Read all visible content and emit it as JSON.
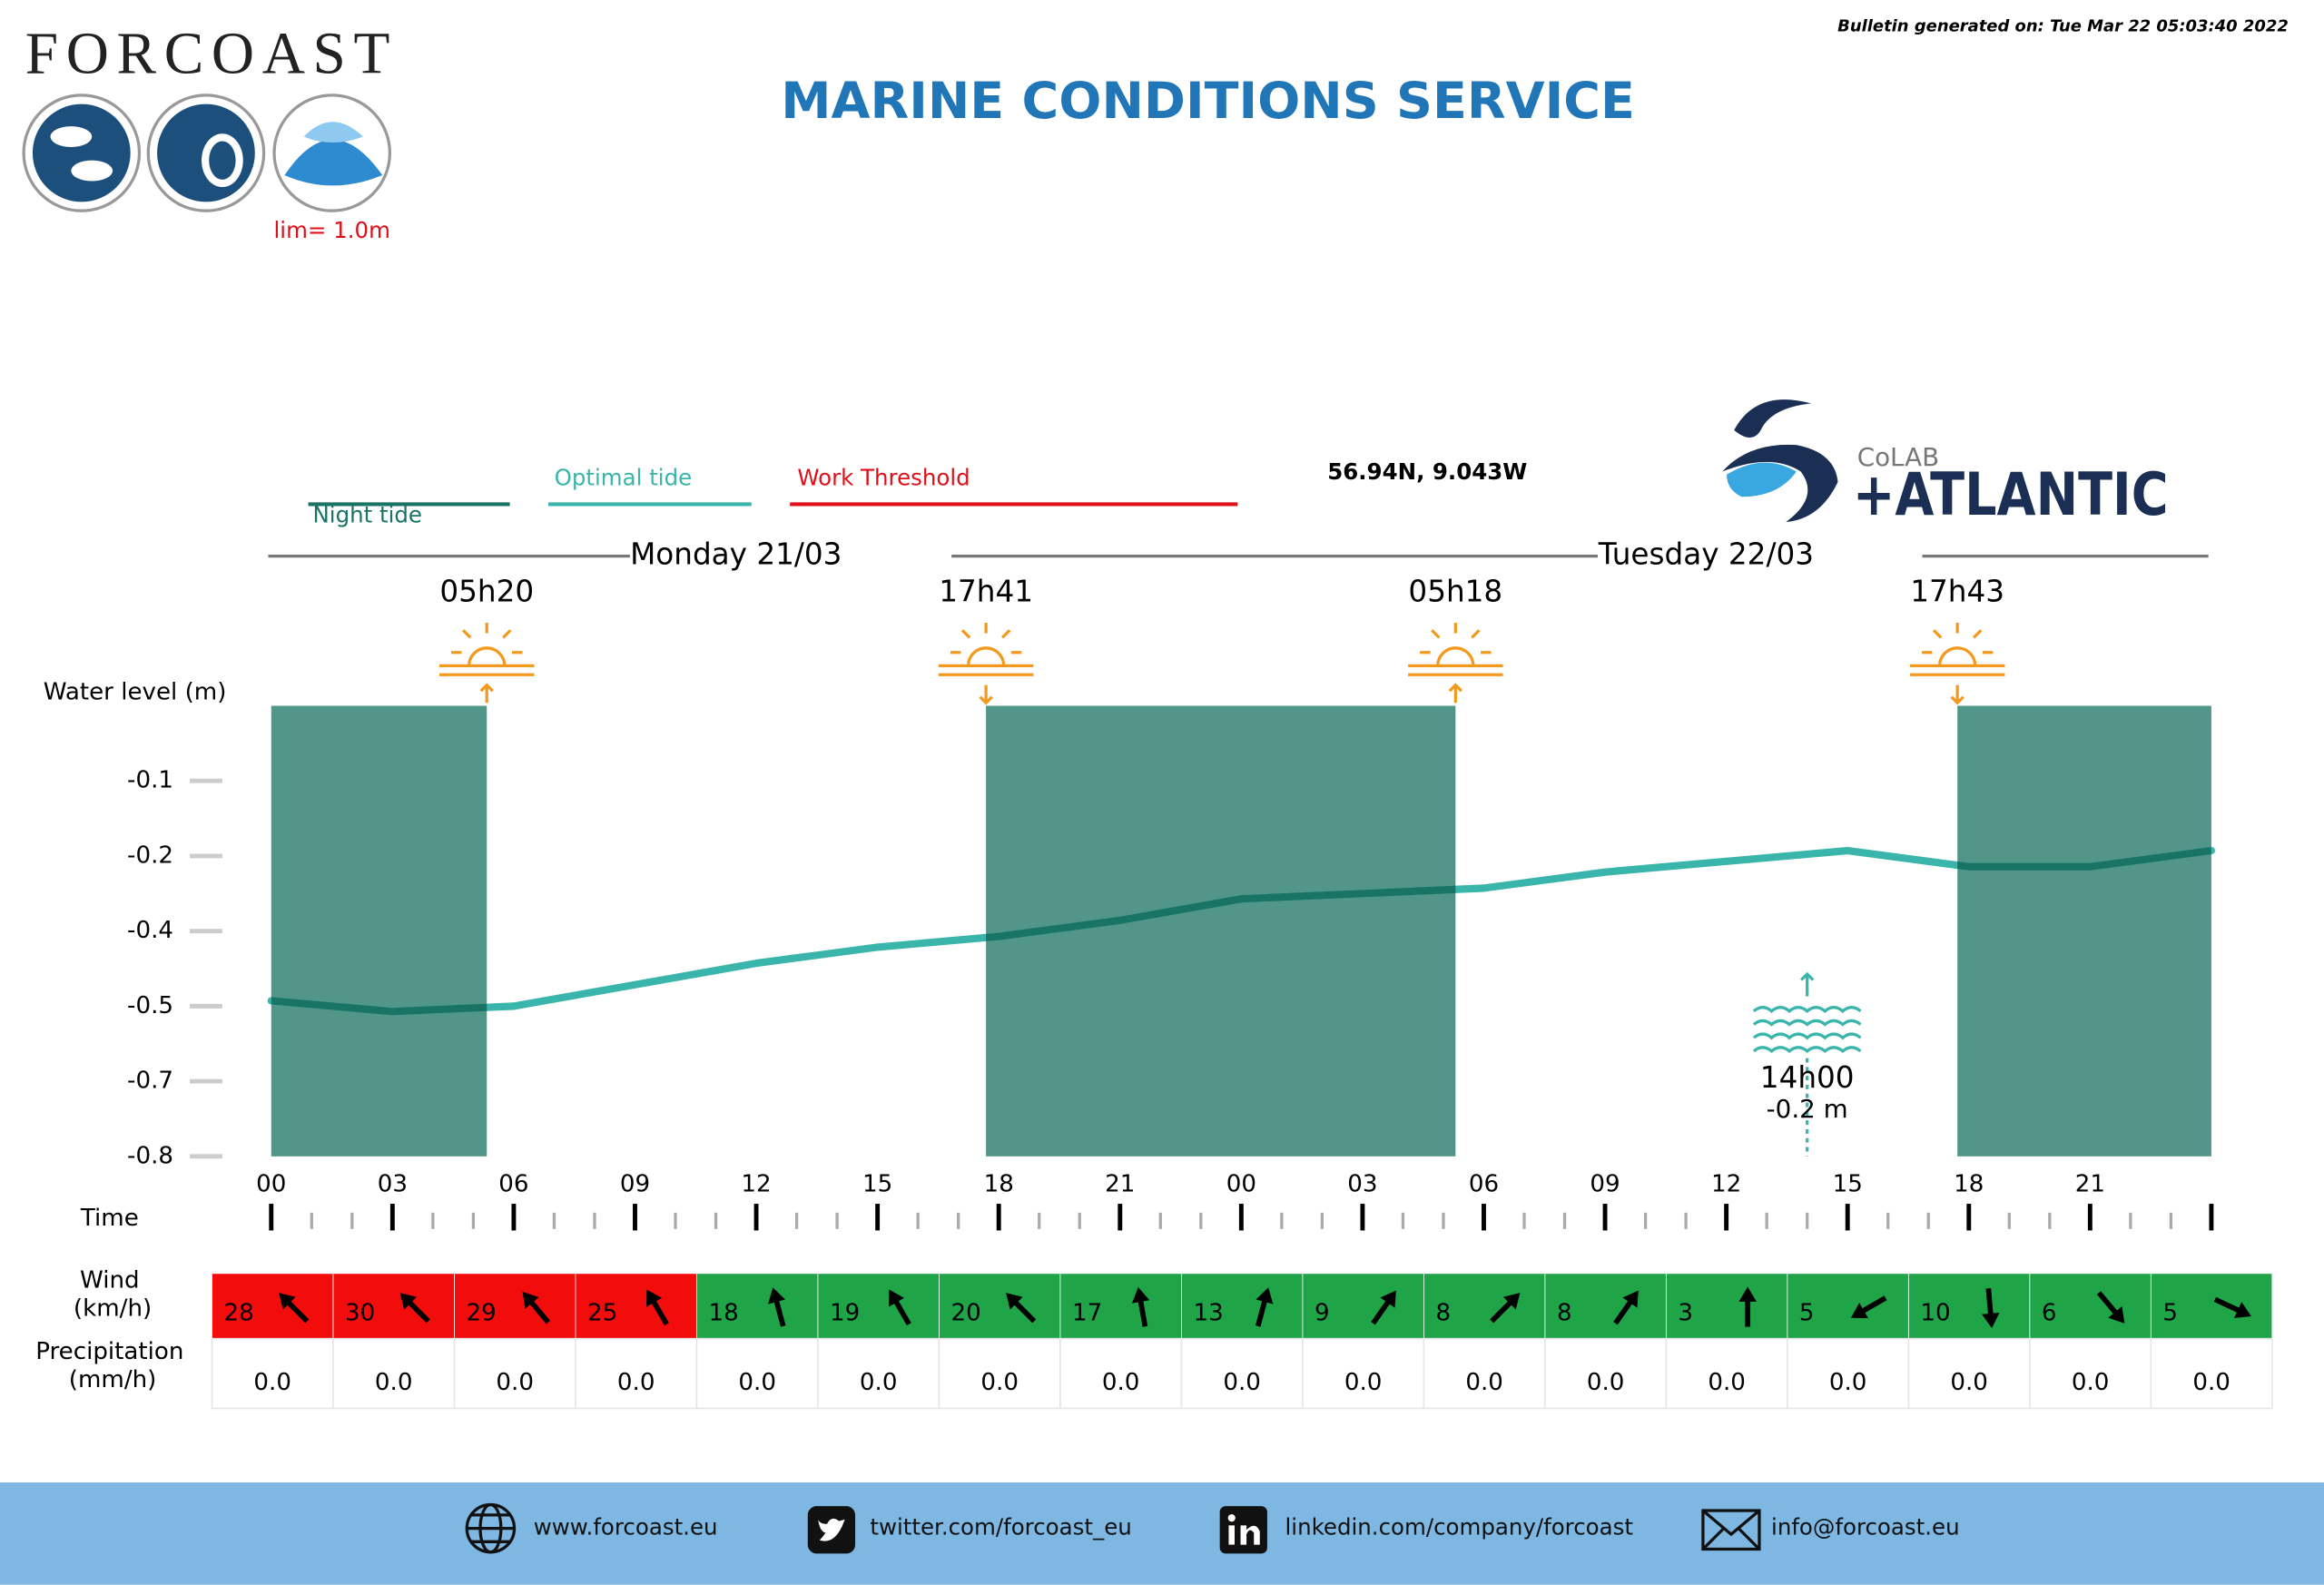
{
  "header": {
    "logo": "FORCOAST",
    "limit": "lim= 1.0m",
    "title": "MARINE CONDITIONS SERVICE",
    "generated": "Bulletin generated on: Tue Mar 22 05:03:40 2022",
    "location": "56.94N, 9.043W",
    "partner_small": "CoLAB",
    "partner_big": "+ATLANTIC"
  },
  "chart_data": {
    "type": "line",
    "legend": [
      {
        "name": "Night tide",
        "color": "#1a7466"
      },
      {
        "name": "Optimal tide",
        "color": "#3ab5ab"
      },
      {
        "name": "Work Threshold",
        "color": "#e0101a"
      }
    ],
    "ylabel": "Water level (m)",
    "xlabel": "Time",
    "x": [
      0,
      3,
      6,
      9,
      12,
      15,
      18,
      21,
      24,
      27,
      30,
      33,
      36,
      39,
      42,
      45,
      48
    ],
    "values": [
      -0.51,
      -0.53,
      -0.52,
      -0.48,
      -0.44,
      -0.41,
      -0.39,
      -0.36,
      -0.32,
      -0.31,
      -0.3,
      -0.27,
      -0.25,
      -0.23,
      -0.26,
      -0.26,
      -0.23
    ],
    "color": "#3ab5ab",
    "night_line_color": "#1a7466",
    "night_color": "#52968a",
    "sun_color": "#f39a1e",
    "xlim": [
      0,
      48
    ],
    "ylim": [
      -0.8,
      0.04
    ],
    "yticks": [
      {
        "value": -0.8,
        "label": "-0.8"
      },
      {
        "value": -0.66,
        "label": "-0.7"
      },
      {
        "value": -0.52,
        "label": "-0.5"
      },
      {
        "value": -0.38,
        "label": "-0.4"
      },
      {
        "value": -0.24,
        "label": "-0.2"
      },
      {
        "value": -0.1,
        "label": "-0.1"
      }
    ],
    "xticks": [
      {
        "value": 0,
        "label": "00"
      },
      {
        "value": 3,
        "label": "03"
      },
      {
        "value": 6,
        "label": "06"
      },
      {
        "value": 9,
        "label": "09"
      },
      12,
      15,
      18,
      21,
      {
        "value": 24,
        "label": "00"
      },
      {
        "value": 27,
        "label": "03"
      },
      {
        "value": 30,
        "label": "06"
      },
      {
        "value": 33,
        "label": "09"
      },
      {
        "value": 36,
        "label": "12"
      },
      {
        "value": 39,
        "label": "15"
      },
      {
        "value": 42,
        "label": "18"
      },
      {
        "value": 45,
        "label": "21"
      }
    ],
    "days": [
      {
        "label": "Monday 21/03",
        "sunrise": "05h20",
        "sunset": "17h41"
      },
      {
        "label": "Tuesday 22/03",
        "sunrise": "05h18",
        "sunset": "17h43"
      }
    ],
    "high_tide": {
      "time": "14h00",
      "x": 38,
      "value": -0.23,
      "value_label": "-0.2 m"
    }
  },
  "table": {
    "wind_label": [
      "Wind",
      "(km/h)"
    ],
    "precip_label": [
      "Precipitation",
      "(mm/h)"
    ],
    "wind": [
      28,
      30,
      29,
      25,
      18,
      19,
      20,
      17,
      13,
      9,
      8,
      8,
      3,
      5,
      10,
      6,
      5
    ],
    "wind_direction": [
      315,
      315,
      320,
      330,
      345,
      330,
      315,
      350,
      15,
      35,
      45,
      35,
      0,
      240,
      175,
      140,
      115
    ],
    "wind_colors": [
      "#f20c0c",
      "#f20c0c",
      "#f20c0c",
      "#f20c0c",
      "#1fa547",
      "#1fa547",
      "#1fa547",
      "#1fa547",
      "#1fa547",
      "#1fa547",
      "#1fa547",
      "#1fa547",
      "#1fa547",
      "#1fa547",
      "#1fa547",
      "#1fa547",
      "#1fa547"
    ],
    "precipitation": [
      0,
      0,
      0,
      0,
      0,
      0,
      0,
      0,
      0,
      0,
      0,
      0,
      0,
      0,
      0,
      0,
      0
    ],
    "precipitation_labels": [
      "0.0",
      "0.0",
      "0.0",
      "0.0",
      "0.0",
      "0.0",
      "0.0",
      "0.0",
      "0.0",
      "0.0",
      "0.0",
      "0.0",
      "0.0",
      "0.0",
      "0.0",
      "0.0",
      "0.0"
    ]
  },
  "footer": {
    "links": [
      "www.forcoast.eu",
      "twitter.com/forcoast_eu",
      "linkedin.com/company/forcoast",
      "info@forcoast.eu"
    ]
  }
}
